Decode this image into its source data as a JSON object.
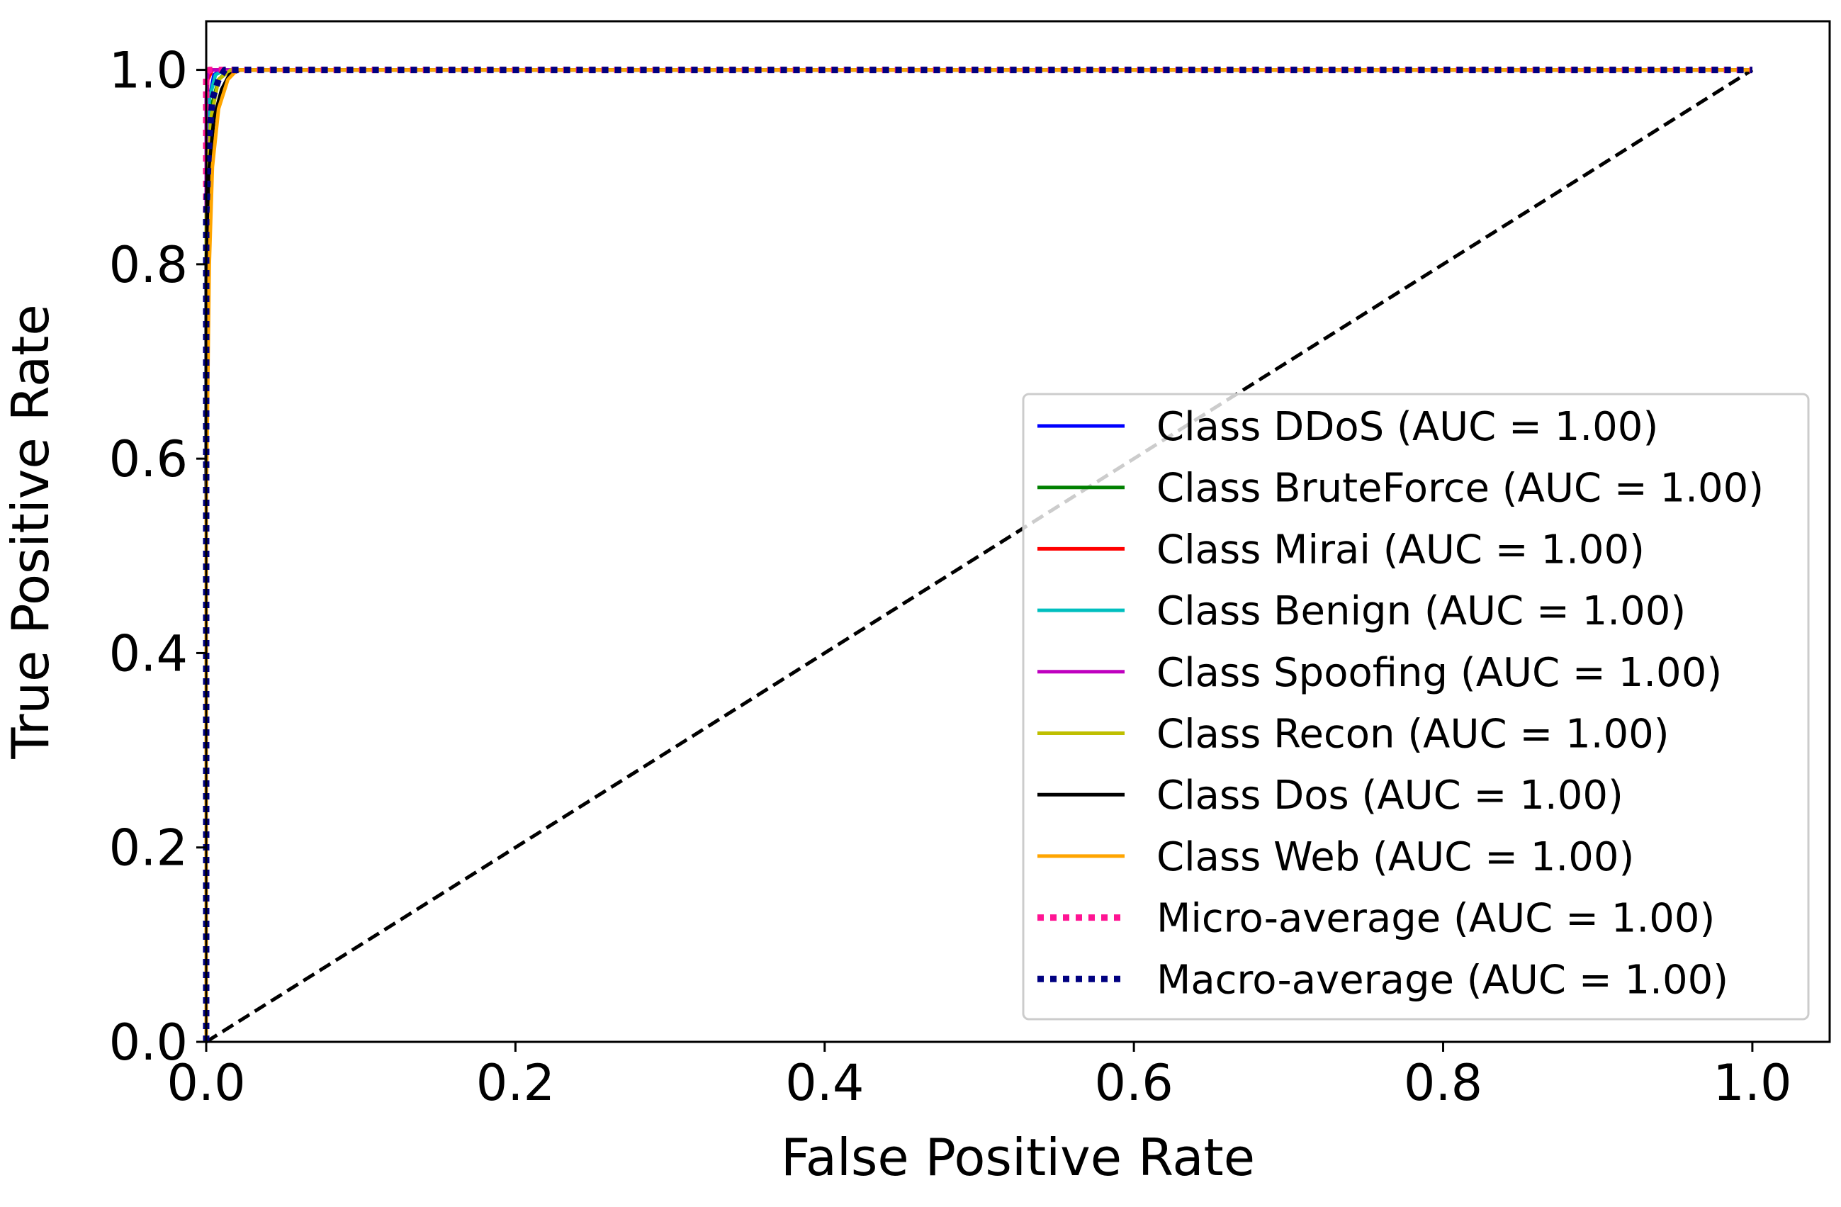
{
  "chart_data": {
    "type": "line",
    "title": "",
    "xlabel": "False Positive Rate",
    "ylabel": "True Positive Rate",
    "xlim": [
      0.0,
      1.05
    ],
    "ylim": [
      0.0,
      1.05
    ],
    "xticks": [
      0.0,
      0.2,
      0.4,
      0.6,
      0.8,
      1.0
    ],
    "yticks": [
      0.0,
      0.2,
      0.4,
      0.6,
      0.8,
      1.0
    ],
    "xtick_labels": [
      "0.0",
      "0.2",
      "0.4",
      "0.6",
      "0.8",
      "1.0"
    ],
    "ytick_labels": [
      "0.0",
      "0.2",
      "0.4",
      "0.6",
      "0.8",
      "1.0"
    ],
    "grid": false,
    "legend_position": "lower-right",
    "series": [
      {
        "name": "Class DDoS (AUC = 1.00)",
        "color": "#0000ff",
        "style": "solid",
        "x": [
          0.0,
          0.0,
          0.002,
          0.005,
          0.01,
          1.0
        ],
        "y": [
          0.0,
          0.9,
          0.97,
          0.995,
          1.0,
          1.0
        ]
      },
      {
        "name": "Class BruteForce (AUC = 1.00)",
        "color": "#008000",
        "style": "solid",
        "x": [
          0.0,
          0.0,
          0.003,
          0.008,
          0.015,
          1.0
        ],
        "y": [
          0.0,
          0.88,
          0.96,
          0.99,
          1.0,
          1.0
        ]
      },
      {
        "name": "Class Mirai (AUC = 1.00)",
        "color": "#ff0000",
        "style": "solid",
        "x": [
          0.0,
          0.0,
          0.001,
          0.004,
          1.0
        ],
        "y": [
          0.0,
          0.95,
          0.99,
          1.0,
          1.0
        ]
      },
      {
        "name": "Class Benign (AUC = 1.00)",
        "color": "#00bfbf",
        "style": "solid",
        "x": [
          0.0,
          0.0,
          0.002,
          0.006,
          0.012,
          1.0
        ],
        "y": [
          0.0,
          0.9,
          0.97,
          0.995,
          1.0,
          1.0
        ]
      },
      {
        "name": "Class Spoofing (AUC = 1.00)",
        "color": "#bf00bf",
        "style": "solid",
        "x": [
          0.0,
          0.0,
          0.001,
          0.003,
          1.0
        ],
        "y": [
          0.0,
          0.97,
          0.995,
          1.0,
          1.0
        ]
      },
      {
        "name": "Class Recon (AUC = 1.00)",
        "color": "#bfbf00",
        "style": "solid",
        "x": [
          0.0,
          0.0,
          0.003,
          0.008,
          0.016,
          1.0
        ],
        "y": [
          0.0,
          0.85,
          0.95,
          0.99,
          1.0,
          1.0
        ]
      },
      {
        "name": "Class Dos (AUC = 1.00)",
        "color": "#000000",
        "style": "solid",
        "x": [
          0.0,
          0.0,
          0.002,
          0.005,
          0.01,
          0.015,
          0.022,
          1.0
        ],
        "y": [
          0.0,
          0.8,
          0.9,
          0.95,
          0.98,
          0.995,
          1.0,
          1.0
        ]
      },
      {
        "name": "Class Web (AUC = 1.00)",
        "color": "#ffa500",
        "style": "solid",
        "x": [
          0.0,
          0.0,
          0.002,
          0.004,
          0.008,
          0.014,
          0.02,
          1.0
        ],
        "y": [
          0.0,
          0.55,
          0.8,
          0.9,
          0.96,
          0.99,
          1.0,
          1.0
        ]
      },
      {
        "name": "Micro-average (AUC = 1.00)",
        "color": "#ff1493",
        "style": "dotted",
        "x": [
          0.0,
          0.0,
          0.002,
          1.0
        ],
        "y": [
          0.0,
          0.995,
          1.0,
          1.0
        ]
      },
      {
        "name": "Macro-average (AUC = 1.00)",
        "color": "#000080",
        "style": "dotted",
        "x": [
          0.0,
          0.0,
          0.002,
          0.004,
          0.008,
          0.012,
          1.0
        ],
        "y": [
          0.0,
          0.85,
          0.93,
          0.97,
          0.99,
          1.0,
          1.0
        ]
      }
    ],
    "reference_line": {
      "color": "#000000",
      "style": "dashed",
      "x": [
        0.0,
        1.0
      ],
      "y": [
        0.0,
        1.0
      ]
    }
  }
}
